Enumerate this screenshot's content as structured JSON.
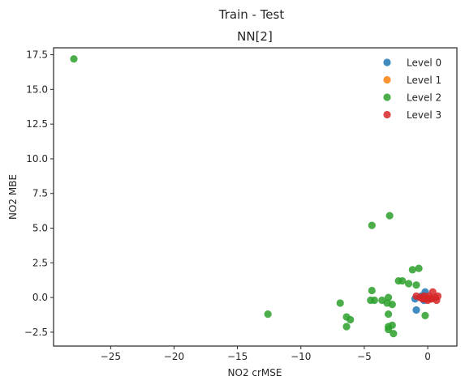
{
  "chart_data": {
    "type": "scatter",
    "suptitle": "Train - Test",
    "title": "NN[2]",
    "xlabel": "NO2 crMSE",
    "ylabel": "NO2 MBE",
    "xlim": [
      -29.5,
      2.3
    ],
    "ylim": [
      -3.5,
      18.0
    ],
    "xticks": [
      -25,
      -20,
      -15,
      -10,
      -5,
      0
    ],
    "xtick_labels": [
      "−25",
      "−20",
      "−15",
      "−10",
      "−5",
      "0"
    ],
    "yticks": [
      -2.5,
      0.0,
      2.5,
      5.0,
      7.5,
      10.0,
      12.5,
      15.0,
      17.5
    ],
    "ytick_labels": [
      "−2.5",
      "0.0",
      "2.5",
      "5.0",
      "7.5",
      "10.0",
      "12.5",
      "15.0",
      "17.5"
    ],
    "grid": false,
    "legend_position": "top-right",
    "series": [
      {
        "name": "Level 0",
        "color": "#1f77b4",
        "points": [
          [
            -0.2,
            0.4
          ],
          [
            -0.9,
            -0.9
          ],
          [
            -1.0,
            -0.1
          ],
          [
            -0.5,
            0.1
          ],
          [
            -0.3,
            -0.2
          ]
        ]
      },
      {
        "name": "Level 1",
        "color": "#ff7f0e",
        "points": []
      },
      {
        "name": "Level 2",
        "color": "#2ca02c",
        "points": [
          [
            -27.9,
            17.2
          ],
          [
            -3.0,
            5.9
          ],
          [
            -4.4,
            5.2
          ],
          [
            -0.7,
            2.1
          ],
          [
            -1.2,
            2.0
          ],
          [
            -2.0,
            1.2
          ],
          [
            -2.3,
            1.2
          ],
          [
            -1.5,
            1.0
          ],
          [
            -0.9,
            0.9
          ],
          [
            -4.4,
            0.5
          ],
          [
            -3.1,
            0.0
          ],
          [
            -4.5,
            -0.2
          ],
          [
            -4.2,
            -0.2
          ],
          [
            -3.6,
            -0.2
          ],
          [
            -3.2,
            -0.4
          ],
          [
            -2.8,
            -0.5
          ],
          [
            -6.9,
            -0.4
          ],
          [
            -3.1,
            -1.2
          ],
          [
            -12.6,
            -1.2
          ],
          [
            -6.4,
            -1.4
          ],
          [
            -6.1,
            -1.6
          ],
          [
            -6.4,
            -2.1
          ],
          [
            -0.2,
            -1.3
          ],
          [
            -3.1,
            -2.1
          ],
          [
            -2.8,
            -2.0
          ],
          [
            -3.1,
            -2.3
          ],
          [
            -2.7,
            -2.6
          ]
        ]
      },
      {
        "name": "Level 3",
        "color": "#d62728",
        "points": [
          [
            -0.9,
            0.1
          ],
          [
            -0.6,
            0.0
          ],
          [
            -0.4,
            -0.1
          ],
          [
            -0.3,
            0.1
          ],
          [
            -0.1,
            0.0
          ],
          [
            0.0,
            -0.2
          ],
          [
            0.2,
            -0.1
          ],
          [
            0.4,
            0.4
          ],
          [
            0.6,
            0.0
          ],
          [
            0.8,
            0.1
          ],
          [
            0.7,
            -0.2
          ],
          [
            -0.2,
            -0.1
          ],
          [
            0.1,
            0.1
          ],
          [
            0.3,
            -0.1
          ]
        ]
      }
    ]
  }
}
